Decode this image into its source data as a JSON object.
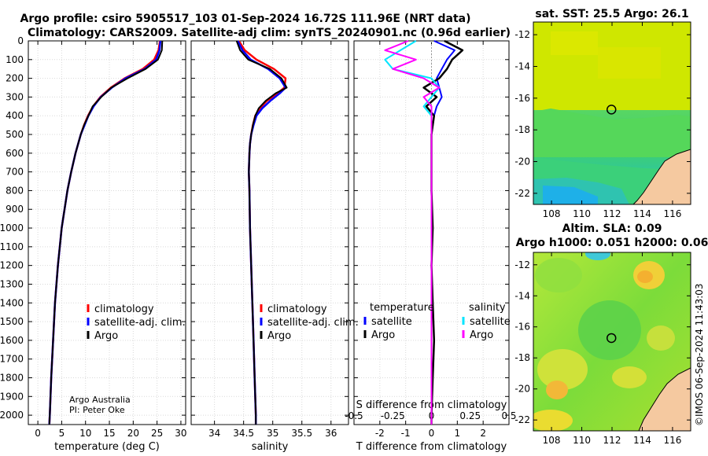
{
  "title_line1": "Argo profile: csiro 5905517_103 01-Sep-2024 16.72S 111.96E (NRT data)",
  "title_line2": "Climatology: CARS2009. Satellite-adj clim: synTS_20240901.nc (0.96d earlier)",
  "sst_title": "sat. SST: 25.5 Argo: 26.1",
  "sla_title1": "Altim. SLA: 0.09",
  "sla_title2": "Argo h1000: 0.051 h2000: 0.06",
  "timestamp": "©IMOS 06-Sep-2024 11:43:03",
  "credit_line1": "Argo Australia",
  "credit_line2": "PI: Peter Oke",
  "colors": {
    "climatology": "#ff0000",
    "satellite": "#0000ff",
    "argo": "#000000",
    "temp_sat": "#00e5ff",
    "sal_sat": "#ff00ff"
  },
  "chart_data": [
    {
      "type": "line",
      "name": "temperature",
      "xlabel": "temperature (deg C)",
      "ylabel": "",
      "xlim": [
        -2,
        31
      ],
      "ylim": [
        2050,
        0
      ],
      "xticks": [
        0,
        5,
        10,
        15,
        20,
        25,
        30
      ],
      "yticks": [
        0,
        100,
        200,
        300,
        400,
        500,
        600,
        700,
        800,
        900,
        1000,
        1100,
        1200,
        1300,
        1400,
        1500,
        1600,
        1700,
        1800,
        1900,
        2000
      ],
      "depth": [
        0,
        50,
        100,
        150,
        200,
        250,
        300,
        350,
        400,
        450,
        500,
        600,
        700,
        800,
        1000,
        1200,
        1400,
        1600,
        1800,
        2000,
        2050
      ],
      "series": [
        {
          "name": "climatology",
          "values": [
            25.6,
            25.3,
            24.4,
            22.0,
            18.2,
            15.3,
            13.1,
            11.6,
            10.5,
            9.7,
            9.0,
            7.9,
            7.0,
            6.2,
            5.0,
            4.2,
            3.6,
            3.2,
            2.8,
            2.5,
            2.4
          ]
        },
        {
          "name": "satellite-adj. clim.",
          "values": [
            25.7,
            25.5,
            24.8,
            22.4,
            18.4,
            15.5,
            13.2,
            11.7,
            10.6,
            9.8,
            9.0,
            7.9,
            7.0,
            6.2,
            5.0,
            4.2,
            3.6,
            3.2,
            2.8,
            2.5,
            2.4
          ]
        },
        {
          "name": "Argo",
          "values": [
            26.1,
            26.0,
            25.2,
            22.6,
            18.8,
            15.4,
            13.3,
            11.5,
            10.6,
            9.7,
            9.0,
            7.9,
            7.0,
            6.2,
            5.0,
            4.2,
            3.6,
            3.2,
            2.8,
            2.5,
            2.4
          ]
        }
      ],
      "legend": [
        "climatology",
        "satellite-adj. clim.",
        "Argo"
      ]
    },
    {
      "type": "line",
      "name": "salinity",
      "xlabel": "salinity",
      "xlim": [
        33.6,
        36.3
      ],
      "ylim": [
        2050,
        0
      ],
      "xticks": [
        34,
        34.5,
        35,
        35.5,
        36
      ],
      "depth": [
        0,
        50,
        100,
        150,
        200,
        250,
        280,
        320,
        360,
        400,
        450,
        500,
        550,
        600,
        700,
        800,
        1000,
        1200,
        1400,
        1600,
        1800,
        2000,
        2050
      ],
      "series": [
        {
          "name": "climatology",
          "values": [
            34.42,
            34.52,
            34.72,
            35.02,
            35.22,
            35.2,
            35.08,
            34.9,
            34.78,
            34.7,
            34.66,
            34.63,
            34.61,
            34.6,
            34.59,
            34.6,
            34.61,
            34.63,
            34.65,
            34.67,
            34.69,
            34.71,
            34.71
          ]
        },
        {
          "name": "satellite-adj. clim.",
          "values": [
            34.4,
            34.48,
            34.62,
            34.92,
            35.12,
            35.22,
            35.12,
            34.96,
            34.82,
            34.72,
            34.67,
            34.63,
            34.61,
            34.6,
            34.59,
            34.6,
            34.61,
            34.63,
            34.65,
            34.67,
            34.69,
            34.71,
            34.71
          ]
        },
        {
          "name": "Argo",
          "values": [
            34.38,
            34.44,
            34.58,
            34.95,
            35.15,
            35.24,
            35.05,
            34.88,
            34.76,
            34.7,
            34.66,
            34.63,
            34.61,
            34.6,
            34.59,
            34.6,
            34.61,
            34.63,
            34.65,
            34.67,
            34.69,
            34.71,
            34.71
          ]
        }
      ],
      "legend": [
        "climatology",
        "satellite-adj. clim.",
        "Argo"
      ]
    },
    {
      "type": "line",
      "name": "difference",
      "xlabel": "T difference from climatology",
      "xlabel_top": "S difference from climatology",
      "xlim": [
        -3,
        3
      ],
      "ylim": [
        2050,
        0
      ],
      "xticks": [
        -2,
        -1,
        0,
        1,
        2
      ],
      "sal_ticks": [
        -0.5,
        -0.25,
        0,
        0.25,
        0.5
      ],
      "sal_tick_labels": [
        "-0.5",
        "-0.25",
        "0",
        "0.25",
        "0.5"
      ],
      "depth": [
        0,
        50,
        100,
        150,
        200,
        250,
        300,
        350,
        400,
        500,
        600,
        800,
        1000,
        1200,
        1400,
        1600,
        1800,
        2000,
        2050
      ],
      "series": [
        {
          "name": "temperature Argo",
          "values": [
            0.5,
            1.2,
            0.8,
            0.6,
            0.3,
            -0.3,
            0.2,
            -0.2,
            0.1,
            0.0,
            0.0,
            0.0,
            0.05,
            0.0,
            0.05,
            0.1,
            0.05,
            0.0,
            0.0
          ]
        },
        {
          "name": "temperature satellite",
          "values": [
            0.1,
            0.9,
            0.6,
            0.4,
            0.2,
            0.3,
            0.4,
            0.2,
            0.1,
            0.0,
            0.0,
            0.0,
            0.0,
            0.0,
            0.0,
            0.0,
            0.0,
            0.0,
            0.0
          ]
        },
        {
          "name": "salinity satellite",
          "values": [
            -0.1,
            -0.2,
            -0.3,
            -0.25,
            0.0,
            0.05,
            0.0,
            -0.05,
            0.0,
            0.0,
            0.0,
            0.0,
            0.0,
            0.0,
            0.0,
            0.0,
            0.0,
            0.0,
            0.0
          ]
        },
        {
          "name": "salinity Argo",
          "values": [
            -0.15,
            -0.3,
            -0.1,
            -0.25,
            -0.05,
            0.05,
            -0.05,
            0.0,
            0.0,
            0.0,
            0.0,
            0.0,
            0.0,
            0.0,
            0.0,
            0.0,
            0.0,
            0.0,
            0.0
          ]
        }
      ],
      "legend_temp_title": "temperature",
      "legend_sal_title": "salinity",
      "legend_temp": [
        "satellite",
        "Argo"
      ],
      "legend_sal": [
        "satellite",
        "Argo"
      ]
    },
    {
      "type": "heatmap",
      "name": "sat. SST map",
      "xlim": [
        106.8,
        117.2
      ],
      "ylim": [
        -22.7,
        -11.2
      ],
      "xticks": [
        108,
        110,
        112,
        114,
        116
      ],
      "yticks": [
        -12,
        -14,
        -16,
        -18,
        -20,
        -22
      ],
      "argo_position": [
        111.96,
        -16.72
      ]
    },
    {
      "type": "heatmap",
      "name": "altim. SLA map",
      "xlim": [
        106.8,
        117.2
      ],
      "ylim": [
        -22.7,
        -11.2
      ],
      "xticks": [
        108,
        110,
        112,
        114,
        116
      ],
      "yticks": [
        -12,
        -14,
        -16,
        -18,
        -20,
        -22
      ],
      "argo_position": [
        111.96,
        -16.72
      ]
    }
  ]
}
